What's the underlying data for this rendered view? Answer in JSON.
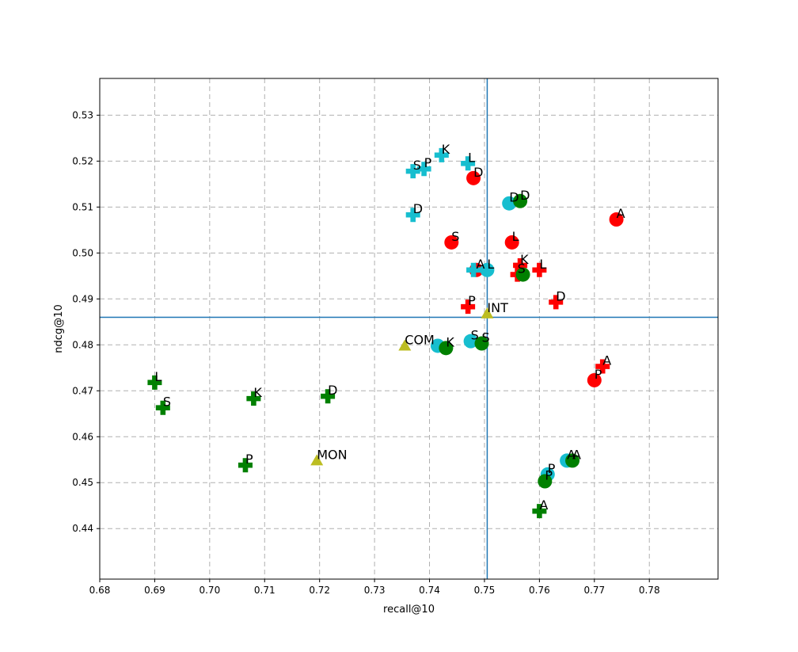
{
  "chart_data": {
    "type": "scatter",
    "xlabel": "recall@10",
    "ylabel": "ndcg@10",
    "xlim": [
      0.68,
      0.7925
    ],
    "ylim": [
      0.429,
      0.538
    ],
    "xticks": [
      "0.68",
      "0.69",
      "0.70",
      "0.71",
      "0.72",
      "0.73",
      "0.74",
      "0.75",
      "0.76",
      "0.77",
      "0.78"
    ],
    "yticks": [
      "0.44",
      "0.45",
      "0.46",
      "0.47",
      "0.48",
      "0.49",
      "0.50",
      "0.51",
      "0.52",
      "0.53"
    ],
    "grid": true,
    "reference_lines": {
      "x": 0.7505,
      "y": 0.486
    },
    "colors": {
      "red": "#ff0000",
      "cyan": "#17becf",
      "green": "#008000",
      "olive": "#bcbd22",
      "refline": "#1f77b4",
      "grid": "#b0b0b0"
    },
    "points": [
      {
        "x": 0.774,
        "y": 0.5073,
        "label": "A",
        "color": "red",
        "marker": "circle"
      },
      {
        "x": 0.748,
        "y": 0.5163,
        "label": "D",
        "color": "red",
        "marker": "circle"
      },
      {
        "x": 0.744,
        "y": 0.5023,
        "label": "S",
        "color": "red",
        "marker": "circle"
      },
      {
        "x": 0.755,
        "y": 0.5023,
        "label": "L",
        "color": "red",
        "marker": "circle"
      },
      {
        "x": 0.7485,
        "y": 0.4963,
        "label": "A",
        "color": "red",
        "marker": "circle"
      },
      {
        "x": 0.77,
        "y": 0.4723,
        "label": "P",
        "color": "red",
        "marker": "circle"
      },
      {
        "x": 0.7565,
        "y": 0.4973,
        "label": "K",
        "color": "red",
        "marker": "plus"
      },
      {
        "x": 0.76,
        "y": 0.4963,
        "label": "L",
        "color": "red",
        "marker": "plus"
      },
      {
        "x": 0.756,
        "y": 0.4953,
        "label": "S",
        "color": "red",
        "marker": "plus"
      },
      {
        "x": 0.763,
        "y": 0.4893,
        "label": "D",
        "color": "red",
        "marker": "plus"
      },
      {
        "x": 0.747,
        "y": 0.4883,
        "label": "P",
        "color": "red",
        "marker": "plus"
      },
      {
        "x": 0.7715,
        "y": 0.4753,
        "label": "A",
        "color": "red",
        "marker": "plus"
      },
      {
        "x": 0.7545,
        "y": 0.5108,
        "label": "D",
        "color": "cyan",
        "marker": "circle"
      },
      {
        "x": 0.7505,
        "y": 0.4963,
        "label": "L",
        "color": "cyan",
        "marker": "circle"
      },
      {
        "x": 0.7475,
        "y": 0.4808,
        "label": "S",
        "color": "cyan",
        "marker": "circle"
      },
      {
        "x": 0.7415,
        "y": 0.4798,
        "label": "",
        "color": "cyan",
        "marker": "circle"
      },
      {
        "x": 0.765,
        "y": 0.4548,
        "label": "A",
        "color": "cyan",
        "marker": "circle"
      },
      {
        "x": 0.7615,
        "y": 0.4518,
        "label": "P",
        "color": "cyan",
        "marker": "circle"
      },
      {
        "x": 0.7422,
        "y": 0.5213,
        "label": "K",
        "color": "cyan",
        "marker": "plus"
      },
      {
        "x": 0.747,
        "y": 0.5195,
        "label": "L",
        "color": "cyan",
        "marker": "plus"
      },
      {
        "x": 0.737,
        "y": 0.5178,
        "label": "S",
        "color": "cyan",
        "marker": "plus"
      },
      {
        "x": 0.739,
        "y": 0.5183,
        "label": "P",
        "color": "cyan",
        "marker": "plus"
      },
      {
        "x": 0.737,
        "y": 0.5083,
        "label": "D",
        "color": "cyan",
        "marker": "plus"
      },
      {
        "x": 0.748,
        "y": 0.4963,
        "label": "",
        "color": "cyan",
        "marker": "plus"
      },
      {
        "x": 0.7565,
        "y": 0.5113,
        "label": "D",
        "color": "green",
        "marker": "circle"
      },
      {
        "x": 0.757,
        "y": 0.4953,
        "label": "",
        "color": "green",
        "marker": "circle"
      },
      {
        "x": 0.7495,
        "y": 0.4803,
        "label": "S",
        "color": "green",
        "marker": "circle"
      },
      {
        "x": 0.743,
        "y": 0.4793,
        "label": "K",
        "color": "green",
        "marker": "circle"
      },
      {
        "x": 0.766,
        "y": 0.4548,
        "label": "A",
        "color": "green",
        "marker": "circle"
      },
      {
        "x": 0.761,
        "y": 0.4503,
        "label": "P",
        "color": "green",
        "marker": "circle"
      },
      {
        "x": 0.69,
        "y": 0.4718,
        "label": "L",
        "color": "green",
        "marker": "plus"
      },
      {
        "x": 0.6915,
        "y": 0.4663,
        "label": "S",
        "color": "green",
        "marker": "plus"
      },
      {
        "x": 0.708,
        "y": 0.4683,
        "label": "K",
        "color": "green",
        "marker": "plus"
      },
      {
        "x": 0.7215,
        "y": 0.4688,
        "label": "D",
        "color": "green",
        "marker": "plus"
      },
      {
        "x": 0.7065,
        "y": 0.4538,
        "label": "P",
        "color": "green",
        "marker": "plus"
      },
      {
        "x": 0.76,
        "y": 0.4438,
        "label": "A",
        "color": "green",
        "marker": "plus"
      },
      {
        "x": 0.7505,
        "y": 0.4868,
        "label": "INT",
        "color": "olive",
        "marker": "triangle"
      },
      {
        "x": 0.7355,
        "y": 0.4798,
        "label": "COM",
        "color": "olive",
        "marker": "triangle"
      },
      {
        "x": 0.7195,
        "y": 0.4548,
        "label": "MON",
        "color": "olive",
        "marker": "triangle"
      }
    ]
  }
}
